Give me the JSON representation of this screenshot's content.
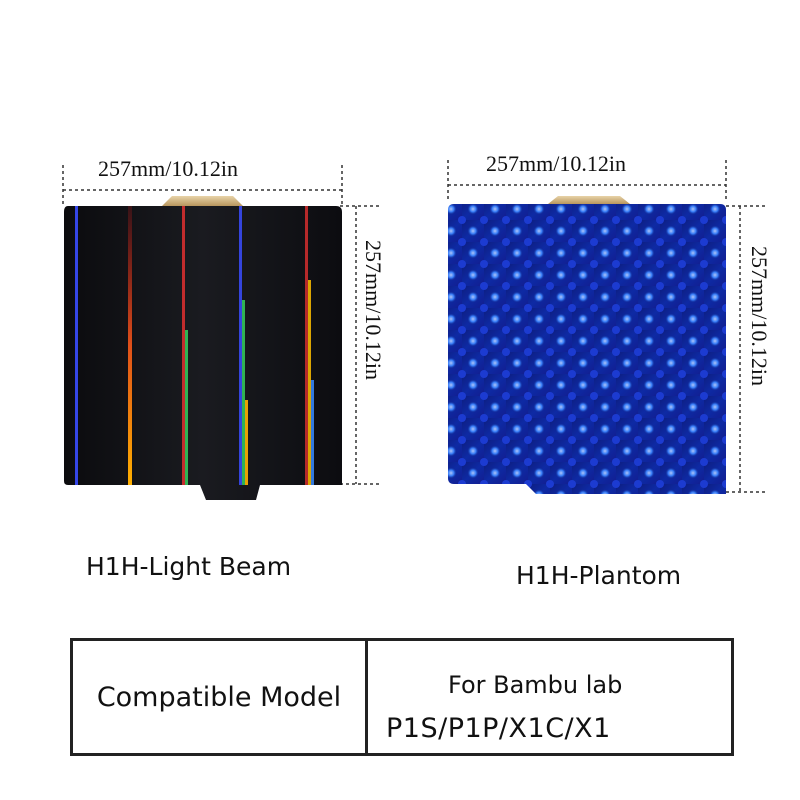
{
  "plates": [
    {
      "name": "H1H-Light Beam",
      "width_label": "257mm/10.12in",
      "height_label": "257mm/10.12in"
    },
    {
      "name": "H1H-Plantom",
      "width_label": "257mm/10.12in",
      "height_label": "257mm/10.12in"
    }
  ],
  "compat": {
    "label": "Compatible Model",
    "brand_line": "For Bambu lab",
    "models_line": "P1S/P1P/X1C/X1"
  }
}
